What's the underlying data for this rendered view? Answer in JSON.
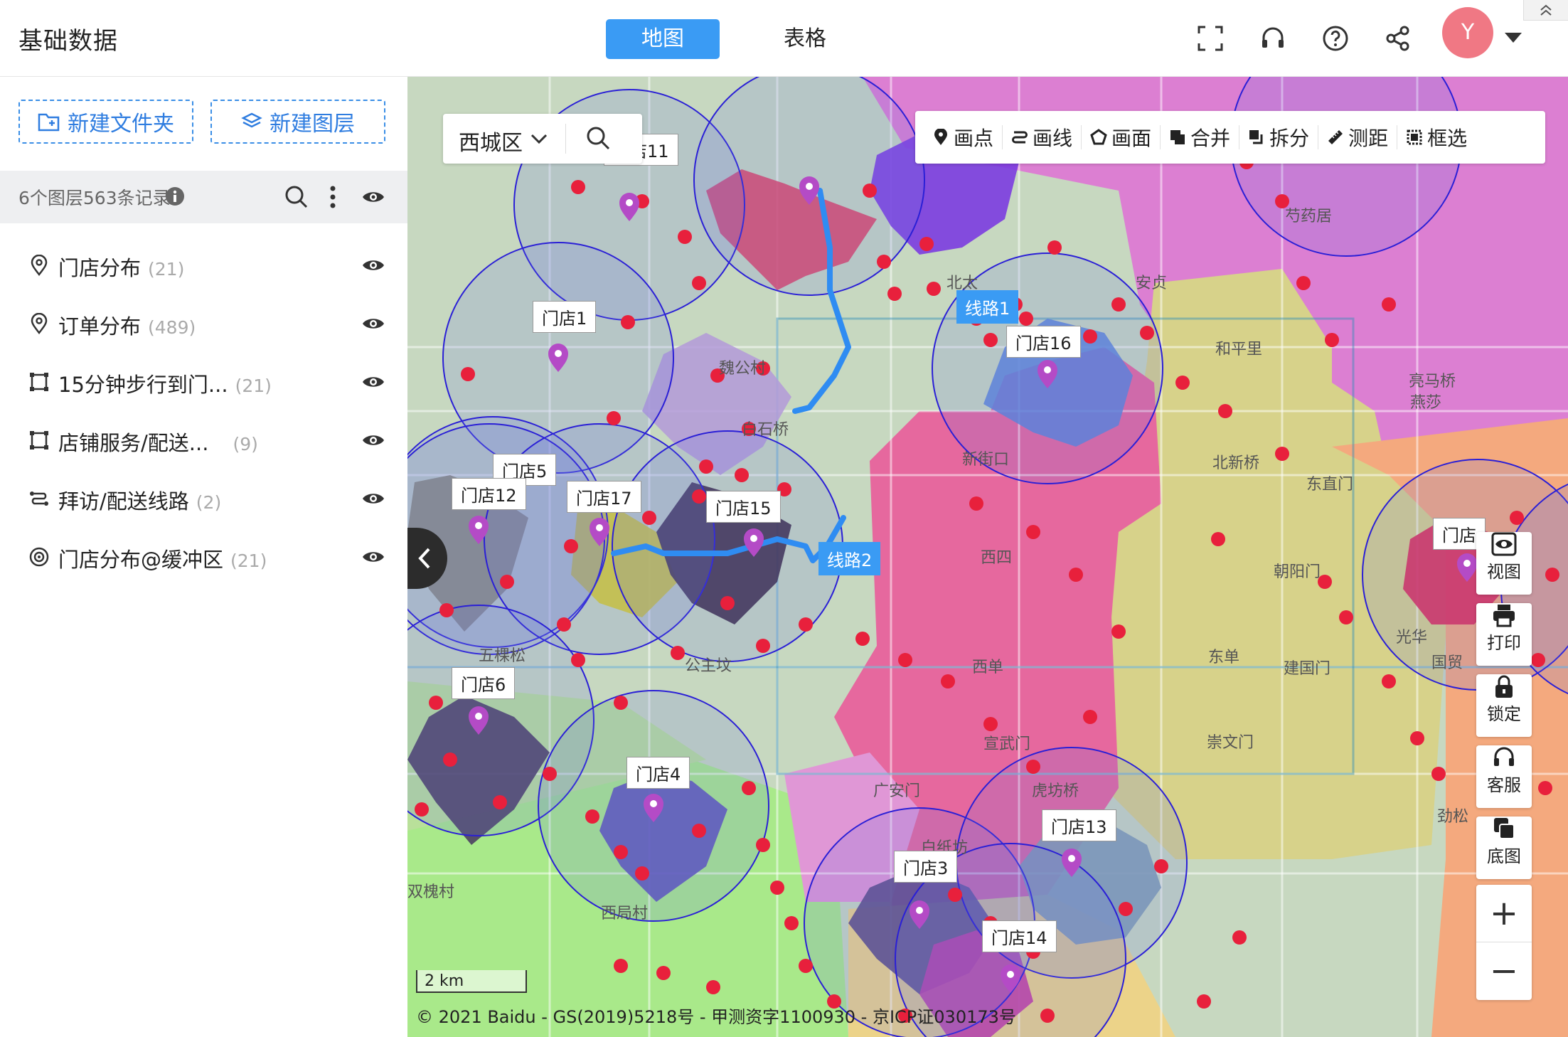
{
  "app": {
    "title": "基础数据"
  },
  "tabs": [
    {
      "label": "地图"
    },
    {
      "label": "表格"
    }
  ],
  "user": {
    "avatar_initial": "Y"
  },
  "sidebar": {
    "new_folder": "新建文件夹",
    "new_layer": "新建图层",
    "summary": "6个图层563条记录",
    "layers": [
      {
        "name": "门店分布",
        "count": "(21)",
        "icon": "pin-icon"
      },
      {
        "name": "订单分布",
        "count": "(489)",
        "icon": "pin-icon"
      },
      {
        "name": "15分钟步行到门...",
        "count": "(21)",
        "icon": "polygon-icon"
      },
      {
        "name": "店铺服务/配送...",
        "count": "(9)",
        "icon": "polygon-icon"
      },
      {
        "name": "拜访/配送线路",
        "count": "(2)",
        "icon": "route-icon"
      },
      {
        "name": "门店分布@缓冲区",
        "count": "(21)",
        "icon": "buffer-icon"
      }
    ]
  },
  "map": {
    "district": "西城区",
    "tools": [
      "画点",
      "画线",
      "画面",
      "合并",
      "拆分",
      "测距",
      "框选"
    ],
    "side_tools": [
      "视图",
      "打印",
      "锁定",
      "客服",
      "底图"
    ],
    "scale": "2 km",
    "copyright": "© 2021 Baidu - GS(2019)5218号 - 甲测资字1100930 - 京ICP证030173号",
    "stores": [
      "门店11",
      "门店1",
      "门店5",
      "门店12",
      "门店17",
      "门店15",
      "门店16",
      "门店6",
      "门店4",
      "门店3",
      "门店13",
      "门店14",
      "门店"
    ],
    "routes": [
      "线路1",
      "线路2"
    ],
    "places": [
      "魏公村",
      "白石桥",
      "新街口",
      "和平里",
      "北新桥",
      "东直门",
      "安贞",
      "芍药居",
      "亮马桥",
      "燕莎",
      "朝阳门",
      "东单",
      "建国门",
      "崇文门",
      "宣武门",
      "西单",
      "西四",
      "虎坊桥",
      "广安门",
      "白纸坊",
      "公主坟",
      "五棵松",
      "西局村",
      "劲松",
      "双槐村",
      "北太",
      "光华",
      "国贸"
    ]
  },
  "colors": {
    "accent": "#3a9bf4",
    "avatar": "#f07884",
    "marker": "#e8203c",
    "buffer_stroke": "#2a1fd6"
  }
}
